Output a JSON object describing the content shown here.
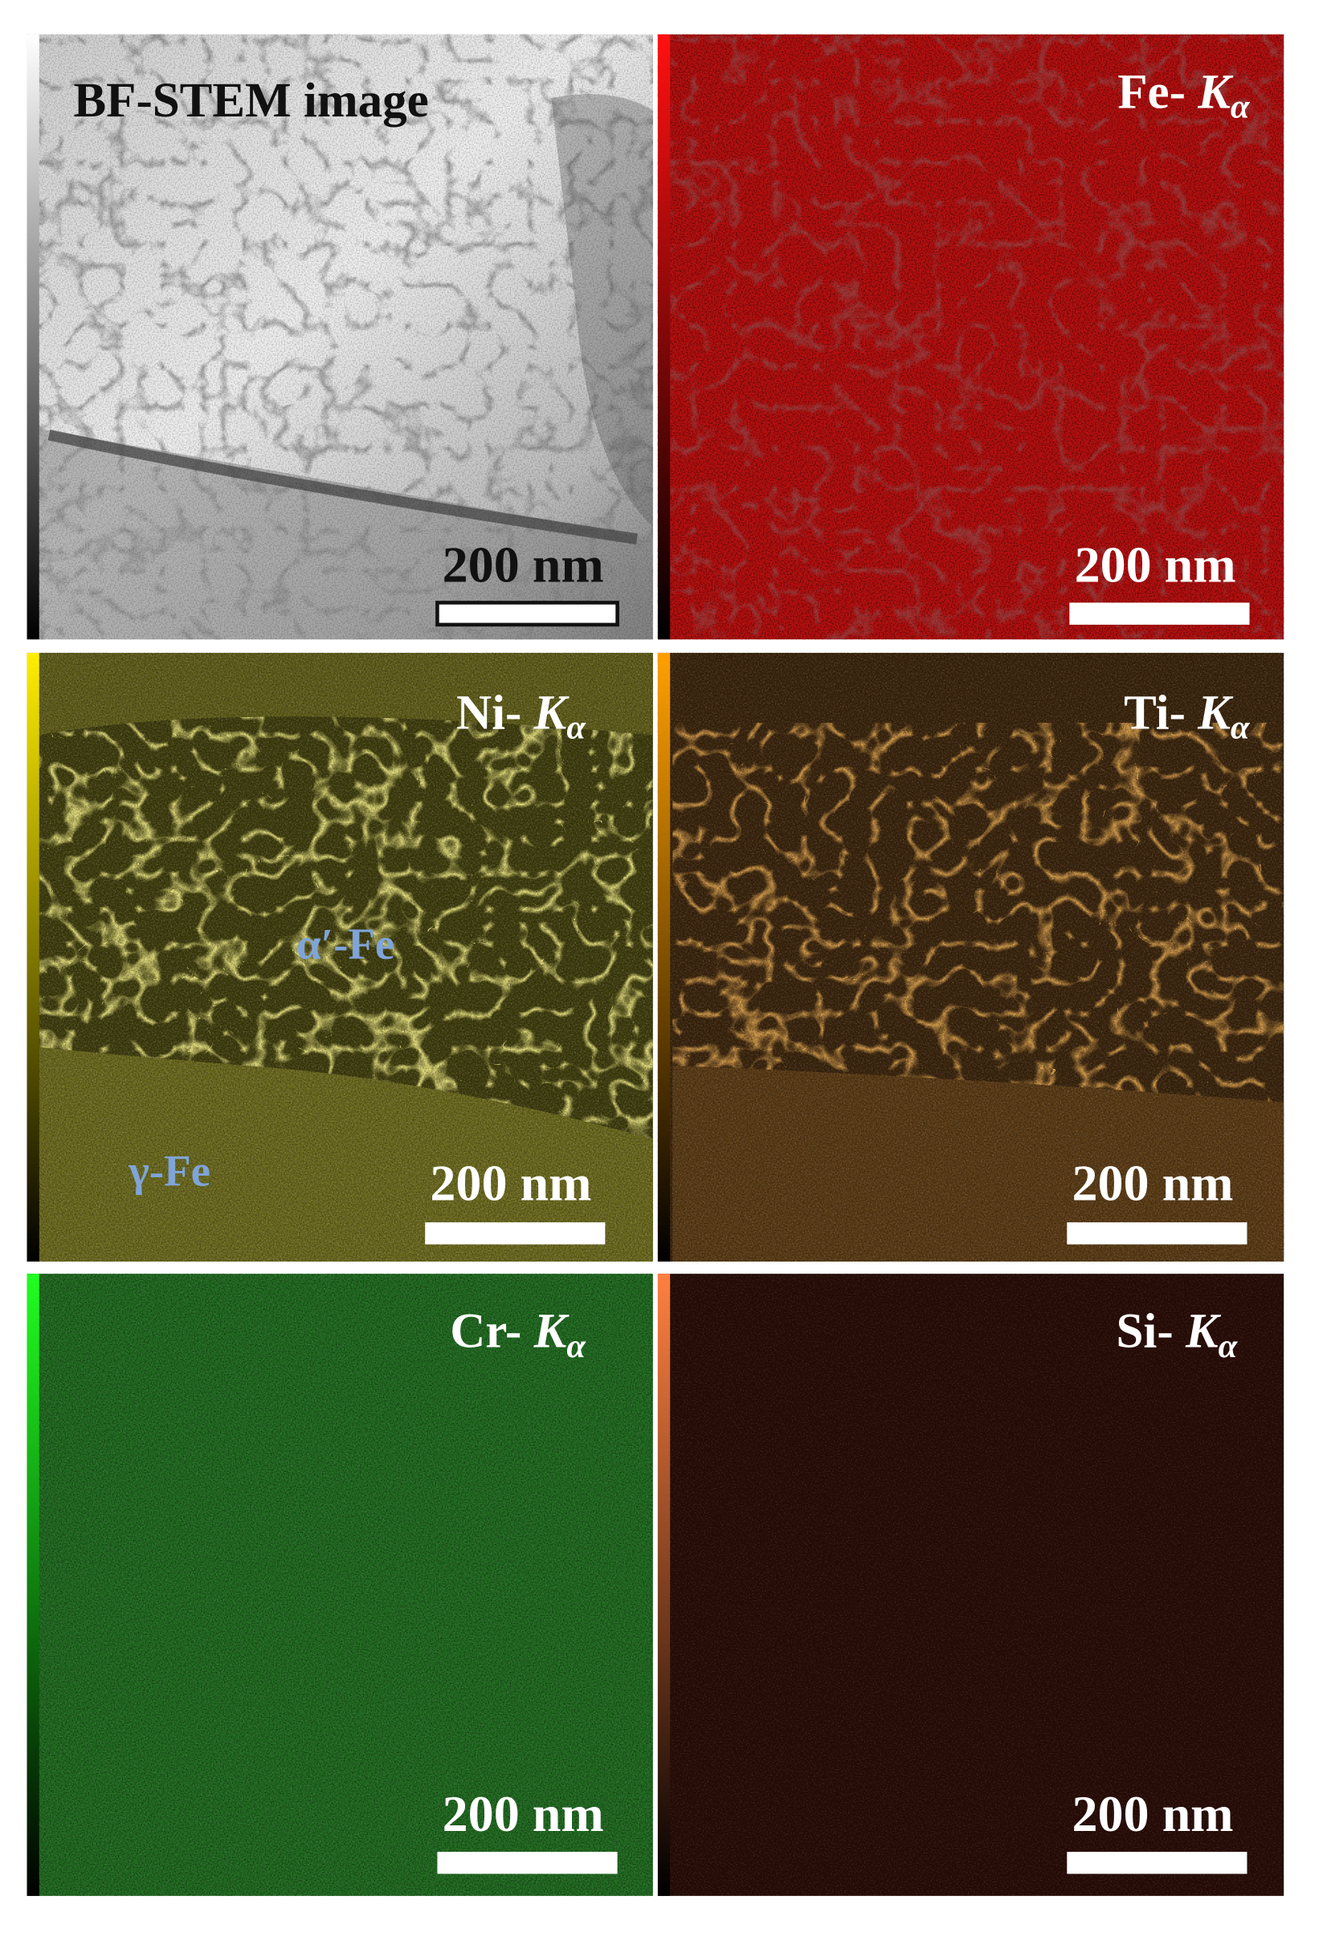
{
  "panels": [
    {
      "title": "BF-STEM image",
      "scale_bar": "200 nm"
    },
    {
      "element": "Fe-",
      "line": "K",
      "subscript": "α",
      "scale_bar": "200 nm"
    },
    {
      "element": "Ni-",
      "line": "K",
      "subscript": "α",
      "scale_bar": "200 nm"
    },
    {
      "element": "Ti-",
      "line": "K",
      "subscript": "α",
      "scale_bar": "200 nm"
    },
    {
      "element": "Cr-",
      "line": "K",
      "subscript": "α",
      "scale_bar": "200 nm"
    },
    {
      "element": "Si-",
      "line": "K",
      "subscript": "α",
      "scale_bar": "200 nm"
    }
  ],
  "annotations": [
    "α′-Fe",
    "γ-Fe"
  ]
}
